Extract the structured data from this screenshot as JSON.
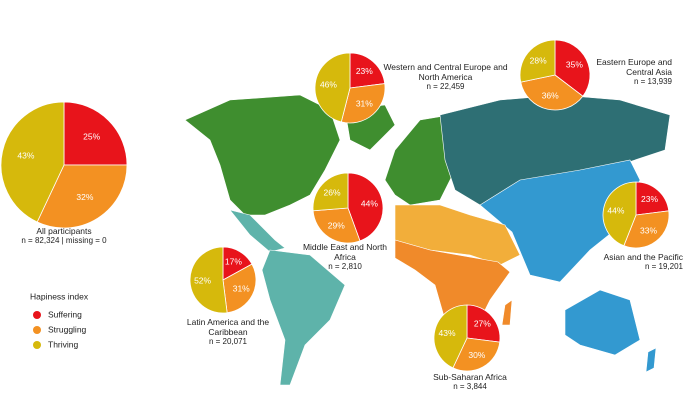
{
  "legend": {
    "title": "Hapiness index",
    "categories": [
      "Suffering",
      "Struggling",
      "Thriving"
    ],
    "colors": [
      "#e8141b",
      "#f39122",
      "#d6b90c"
    ]
  },
  "chart_data": [
    {
      "type": "pie",
      "title": "All participants",
      "note": "n = 82,324 | missing = 0",
      "values": [
        25,
        32,
        43
      ],
      "value_labels": [
        "25%",
        "32%",
        "43%"
      ]
    },
    {
      "type": "pie",
      "title": "Western and Central Europe and North America",
      "note": "n = 22,459",
      "values": [
        23,
        31,
        46
      ],
      "value_labels": [
        "23%",
        "31%",
        "46%"
      ]
    },
    {
      "type": "pie",
      "title": "Eastern Europe and Central Asia",
      "note": "n = 13,939",
      "values": [
        35,
        36,
        28
      ],
      "value_labels": [
        "35%",
        "36%",
        "28%"
      ]
    },
    {
      "type": "pie",
      "title": "Middle East and North Africa",
      "note": "n = 2,810",
      "values": [
        44,
        29,
        26
      ],
      "value_labels": [
        "44%",
        "29%",
        "26%"
      ]
    },
    {
      "type": "pie",
      "title": "Asian and the Pacific",
      "note": "n = 19,201",
      "values": [
        23,
        33,
        44
      ],
      "value_labels": [
        "23%",
        "33%",
        "44%"
      ]
    },
    {
      "type": "pie",
      "title": "Latin America and the Caribbean",
      "note": "n = 20,071",
      "values": [
        17,
        31,
        52
      ],
      "value_labels": [
        "17%",
        "31%",
        "52%"
      ]
    },
    {
      "type": "pie",
      "title": "Sub-Saharan Africa",
      "note": "n = 3,844",
      "values": [
        27,
        30,
        43
      ],
      "value_labels": [
        "27%",
        "30%",
        "43%"
      ]
    }
  ]
}
